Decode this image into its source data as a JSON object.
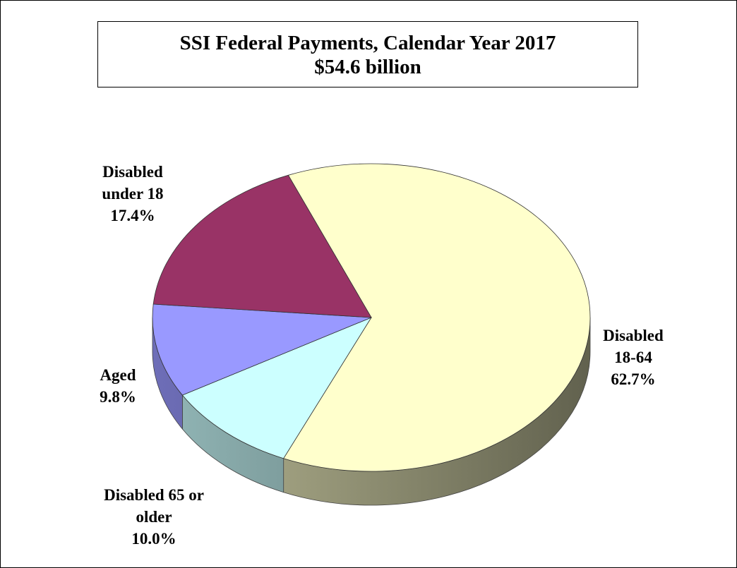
{
  "chart_data": {
    "type": "pie3d",
    "title": "SSI Federal Payments, Calendar Year 2017",
    "subtitle": "$54.6 billion",
    "categories": [
      "Disabled 18-64",
      "Disabled 65 or older",
      "Aged",
      "Disabled under 18"
    ],
    "values": [
      62.7,
      10.0,
      9.8,
      17.4
    ],
    "value_labels": [
      "62.7%",
      "10.0%",
      "9.8%",
      "17.4%"
    ],
    "colors": [
      "#ffffcc",
      "#ccffff",
      "#9999ff",
      "#993366"
    ]
  }
}
